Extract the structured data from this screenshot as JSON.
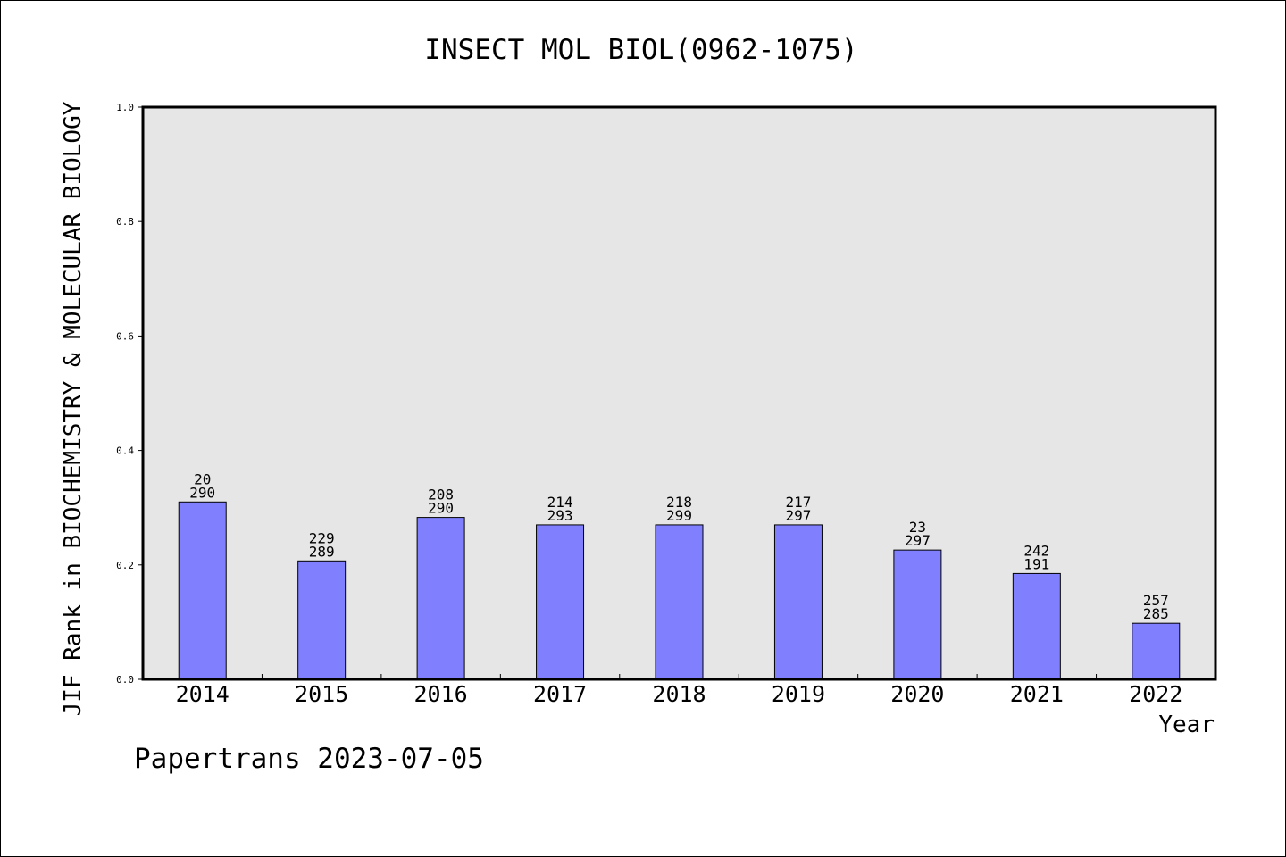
{
  "chart_data": {
    "type": "bar",
    "title": "INSECT MOL BIOL(0962-1075)",
    "xlabel": "Year",
    "ylabel": "JIF Rank in BIOCHEMISTRY & MOLECULAR BIOLOGY",
    "ylim": [
      0,
      1.0
    ],
    "yticks": [
      "0.0",
      "0.2",
      "0.4",
      "0.6",
      "0.8",
      "1.0"
    ],
    "categories": [
      "2014",
      "2015",
      "2016",
      "2017",
      "2018",
      "2019",
      "2020",
      "2021",
      "2022"
    ],
    "values": [
      0.31,
      0.207,
      0.283,
      0.27,
      0.27,
      0.27,
      0.226,
      0.185,
      0.098
    ],
    "rank_labels": [
      {
        "top": "20",
        "bottom": "290"
      },
      {
        "top": "229",
        "bottom": "289"
      },
      {
        "top": "208",
        "bottom": "290"
      },
      {
        "top": "214",
        "bottom": "293"
      },
      {
        "top": "218",
        "bottom": "299"
      },
      {
        "top": "217",
        "bottom": "297"
      },
      {
        "top": "23",
        "bottom": "297"
      },
      {
        "top": "242",
        "bottom": "191"
      },
      {
        "top": "257",
        "bottom": "285"
      }
    ],
    "grid": false,
    "colors": {
      "bar": "#8080ff",
      "plot_background": "#e6e6e6"
    }
  },
  "footer": {
    "text": "Papertrans 2023-07-05"
  }
}
